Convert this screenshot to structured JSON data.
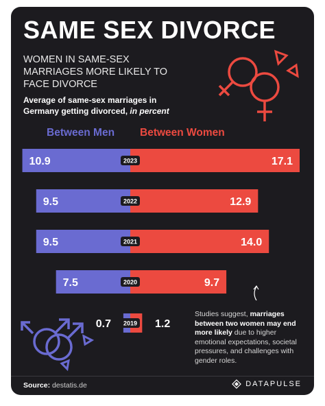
{
  "title": "SAME SEX DIVORCE",
  "subtitle": "WOMEN IN SAME-SEX MARRIAGES MORE LIKELY TO FACE DIVORCE",
  "description_main": "Average of same-sex marriages in Germany getting divorced, ",
  "description_em": "in percent",
  "annotation": {
    "part1": "Studies suggest, ",
    "bold": "marriages between two women may end more likely",
    "part2": " due to higher emotional expectations, societal pressures, and challenges with gender roles."
  },
  "source_label": "Source:",
  "source_value": "destatis.de",
  "brand": "DATAPULSE",
  "colors": {
    "men": "#6a6bd1",
    "women": "#ec4a40",
    "background": "#1c1b1f"
  },
  "icons": [
    "male-male-symbol-icon",
    "female-female-symbol-icon",
    "triangle-icon",
    "arrow-up-icon",
    "brand-logo-icon"
  ],
  "chart_data": {
    "type": "bar",
    "orientation": "diverging-horizontal",
    "categories": [
      "2023",
      "2022",
      "2021",
      "2020",
      "2019"
    ],
    "series": [
      {
        "name": "Between Men",
        "values": [
          10.9,
          9.5,
          9.5,
          7.5,
          0.7
        ]
      },
      {
        "name": "Between Women",
        "values": [
          17.1,
          12.9,
          14.0,
          9.7,
          1.2
        ]
      }
    ],
    "value_labels": {
      "men": [
        "10.9",
        "9.5",
        "9.5",
        "7.5",
        "0.7"
      ],
      "women": [
        "17.1",
        "12.9",
        "14.0",
        "9.7",
        "1.2"
      ]
    },
    "xlim": [
      -17.1,
      17.1
    ],
    "grid": false,
    "legend": "top"
  }
}
